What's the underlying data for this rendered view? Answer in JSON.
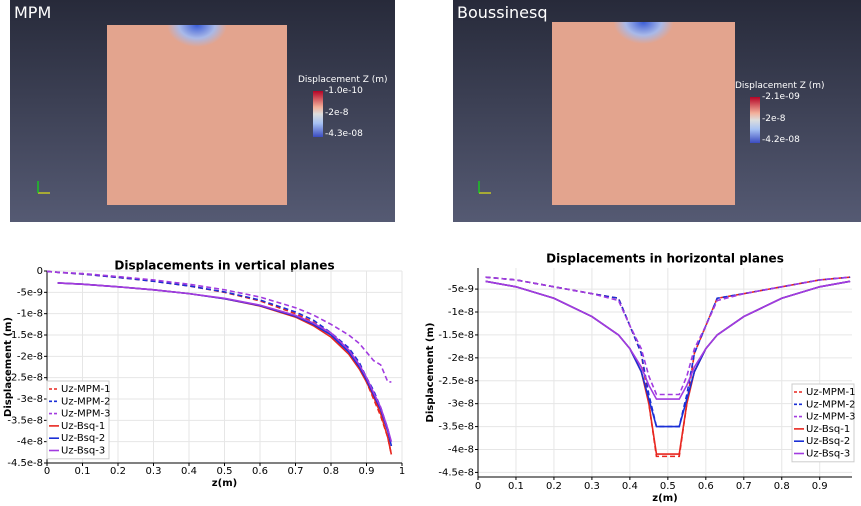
{
  "panels": [
    {
      "title": "MPM",
      "legend_title": "Displacement Z (m)",
      "legend_labels": [
        "-1.0e-10",
        "-2e-8",
        "-4.3e-08"
      ]
    },
    {
      "title": "Boussinesq",
      "legend_title": "Displacement Z (m)",
      "legend_labels": [
        "-2.1e-09",
        "-2e-8",
        "-4.2e-08"
      ]
    }
  ],
  "chart_data": [
    {
      "type": "line",
      "title": "Displacements in vertical planes",
      "x_label": "z(m)",
      "y_label": "Displacement (m)",
      "x": [
        0,
        0.03,
        0.1,
        0.2,
        0.3,
        0.4,
        0.5,
        0.6,
        0.7,
        0.75,
        0.8,
        0.85,
        0.88,
        0.9,
        0.92,
        0.94,
        0.96,
        0.97
      ],
      "xlim": [
        0,
        1
      ],
      "xticks": [
        0,
        0.1,
        0.2,
        0.3,
        0.4,
        0.5,
        0.6,
        0.7,
        0.8,
        0.9,
        1
      ],
      "ylim": [
        -4.5e-08,
        0
      ],
      "yticks": [
        0,
        -5e-09,
        -1e-08,
        -1.5e-08,
        -2e-08,
        -2.5e-08,
        -3e-08,
        -3.5e-08,
        -4e-08,
        -4.5e-08
      ],
      "grid": true,
      "legend": "lower left",
      "series": [
        {
          "name": "Uz-MPM-1",
          "color": "#e8261f",
          "style": "dashed",
          "values": [
            -1e-10,
            -3e-10,
            -7e-10,
            -1.5e-09,
            -2.4e-09,
            -3.5e-09,
            -5e-09,
            -7e-09,
            -1e-08,
            -1.2e-08,
            -1.5e-08,
            -1.85e-08,
            -2.2e-08,
            -2.6e-08,
            -3e-08,
            -3.4e-08,
            -3.9e-08,
            -4.3e-08
          ]
        },
        {
          "name": "Uz-MPM-2",
          "color": "#1a2fd6",
          "style": "dashed",
          "values": [
            -1e-10,
            -3e-10,
            -7e-10,
            -1.5e-09,
            -2.4e-09,
            -3.5e-09,
            -4.9e-09,
            -6.8e-09,
            -9.6e-09,
            -1.15e-08,
            -1.45e-08,
            -1.8e-08,
            -2.15e-08,
            -2.5e-08,
            -2.8e-08,
            -3.2e-08,
            -3.7e-08,
            -4.1e-08
          ]
        },
        {
          "name": "Uz-MPM-3",
          "color": "#a23be0",
          "style": "dashed",
          "values": [
            -1e-10,
            -3e-10,
            -6e-10,
            -1.3e-09,
            -2.1e-09,
            -3.1e-09,
            -4.4e-09,
            -6.1e-09,
            -8.6e-09,
            -1.03e-08,
            -1.25e-08,
            -1.5e-08,
            -1.7e-08,
            -1.9e-08,
            -2.1e-08,
            -2.2e-08,
            -2.6e-08,
            -2.6e-08
          ]
        },
        {
          "name": "Uz-Bsq-1",
          "color": "#e8261f",
          "style": "solid",
          "values": [
            null,
            -2.8e-09,
            -3.1e-09,
            -3.7e-09,
            -4.4e-09,
            -5.3e-09,
            -6.5e-09,
            -8.2e-09,
            -1.08e-08,
            -1.28e-08,
            -1.55e-08,
            -1.95e-08,
            -2.3e-08,
            -2.6e-08,
            -2.95e-08,
            -3.35e-08,
            -3.9e-08,
            -4.3e-08
          ]
        },
        {
          "name": "Uz-Bsq-2",
          "color": "#1a2fd6",
          "style": "solid",
          "values": [
            null,
            -2.8e-09,
            -3.1e-09,
            -3.7e-09,
            -4.4e-09,
            -5.3e-09,
            -6.5e-09,
            -8.1e-09,
            -1.06e-08,
            -1.25e-08,
            -1.5e-08,
            -1.9e-08,
            -2.25e-08,
            -2.55e-08,
            -2.9e-08,
            -3.25e-08,
            -3.75e-08,
            -4.1e-08
          ]
        },
        {
          "name": "Uz-Bsq-3",
          "color": "#a23be0",
          "style": "solid",
          "values": [
            null,
            -2.8e-09,
            -3.1e-09,
            -3.7e-09,
            -4.4e-09,
            -5.3e-09,
            -6.4e-09,
            -8e-09,
            -1.04e-08,
            -1.22e-08,
            -1.45e-08,
            -1.85e-08,
            -2.2e-08,
            -2.5e-08,
            -2.85e-08,
            -3.2e-08,
            -3.7e-08,
            -4e-08
          ]
        }
      ]
    },
    {
      "type": "line",
      "title": "Displacements in horizontal planes",
      "x_label": "z(m)",
      "y_label": "Displacement (m)",
      "x": [
        0.02,
        0.1,
        0.2,
        0.3,
        0.37,
        0.4,
        0.43,
        0.45,
        0.47,
        0.48,
        0.5,
        0.52,
        0.53,
        0.55,
        0.57,
        0.6,
        0.63,
        0.7,
        0.8,
        0.9,
        0.98
      ],
      "xlim": [
        0,
        0.985
      ],
      "xticks": [
        0,
        0.1,
        0.2,
        0.3,
        0.4,
        0.5,
        0.6,
        0.7,
        0.8,
        0.9
      ],
      "ylim": [
        -4.6e-08,
        -4e-10
      ],
      "yticks": [
        -5e-09,
        -1e-08,
        -1.5e-08,
        -2e-08,
        -2.5e-08,
        -3e-08,
        -3.5e-08,
        -4e-08,
        -4.5e-08
      ],
      "grid": true,
      "legend": "lower right",
      "series": [
        {
          "name": "Uz-MPM-1",
          "color": "#e8261f",
          "style": "dashed",
          "values": [
            -2.4e-09,
            -3e-09,
            -4.5e-09,
            -6e-09,
            -7e-09,
            -1.3e-08,
            -1.9e-08,
            -3e-08,
            -4.15e-08,
            -4.15e-08,
            -4.15e-08,
            -4.15e-08,
            -4.15e-08,
            -3e-08,
            -1.9e-08,
            -1.3e-08,
            -7e-09,
            -6e-09,
            -4.5e-09,
            -3e-09,
            -2.4e-09
          ]
        },
        {
          "name": "Uz-MPM-2",
          "color": "#1a2fd6",
          "style": "dashed",
          "values": [
            -2.4e-09,
            -3e-09,
            -4.5e-09,
            -6e-09,
            -7e-09,
            -1.3e-08,
            -1.9e-08,
            -2.8e-08,
            -3.5e-08,
            -3.5e-08,
            -3.5e-08,
            -3.5e-08,
            -3.5e-08,
            -2.8e-08,
            -1.9e-08,
            -1.3e-08,
            -7e-09,
            -6e-09,
            -4.5e-09,
            -3e-09,
            -2.4e-09
          ]
        },
        {
          "name": "Uz-MPM-3",
          "color": "#a23be0",
          "style": "dashed",
          "values": [
            -2.4e-09,
            -3e-09,
            -4.5e-09,
            -6e-09,
            -7.5e-09,
            -1.3e-08,
            -1.8e-08,
            -2.4e-08,
            -2.8e-08,
            -2.8e-08,
            -2.8e-08,
            -2.8e-08,
            -2.8e-08,
            -2.4e-08,
            -1.8e-08,
            -1.3e-08,
            -7.5e-09,
            -6e-09,
            -4.5e-09,
            -3e-09,
            -2.4e-09
          ]
        },
        {
          "name": "Uz-Bsq-1",
          "color": "#e8261f",
          "style": "solid",
          "values": [
            -3.3e-09,
            -4.5e-09,
            -7e-09,
            -1.1e-08,
            -1.5e-08,
            -1.8e-08,
            -2.3e-08,
            -3e-08,
            -4.1e-08,
            -4.1e-08,
            -4.1e-08,
            -4.1e-08,
            -4.1e-08,
            -3e-08,
            -2.3e-08,
            -1.8e-08,
            -1.5e-08,
            -1.1e-08,
            -7e-09,
            -4.5e-09,
            -3.3e-09
          ]
        },
        {
          "name": "Uz-Bsq-2",
          "color": "#1a2fd6",
          "style": "solid",
          "values": [
            -3.3e-09,
            -4.5e-09,
            -7e-09,
            -1.1e-08,
            -1.5e-08,
            -1.8e-08,
            -2.3e-08,
            -2.9e-08,
            -3.5e-08,
            -3.5e-08,
            -3.5e-08,
            -3.5e-08,
            -3.5e-08,
            -2.9e-08,
            -2.3e-08,
            -1.8e-08,
            -1.5e-08,
            -1.1e-08,
            -7e-09,
            -4.5e-09,
            -3.3e-09
          ]
        },
        {
          "name": "Uz-Bsq-3",
          "color": "#a23be0",
          "style": "solid",
          "values": [
            -3.3e-09,
            -4.5e-09,
            -7e-09,
            -1.1e-08,
            -1.5e-08,
            -1.8e-08,
            -2.2e-08,
            -2.6e-08,
            -2.9e-08,
            -2.9e-08,
            -2.9e-08,
            -2.9e-08,
            -2.9e-08,
            -2.6e-08,
            -2.2e-08,
            -1.8e-08,
            -1.5e-08,
            -1.1e-08,
            -7e-09,
            -4.5e-09,
            -3.3e-09
          ]
        }
      ]
    }
  ]
}
